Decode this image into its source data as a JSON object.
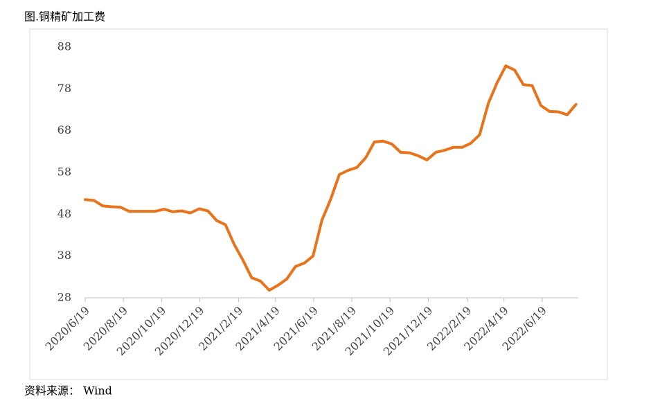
{
  "title": "图.铜精矿加工费",
  "source": "资料来源： Wind",
  "chart_data": {
    "type": "line",
    "color": "#e8731a",
    "x": [
      "2020/6/19",
      "2020/7/3",
      "2020/7/17",
      "2020/7/31",
      "2020/8/14",
      "2020/8/28",
      "2020/9/11",
      "2020/9/25",
      "2020/10/9",
      "2020/10/23",
      "2020/11/6",
      "2020/11/20",
      "2020/12/4",
      "2020/12/18",
      "2021/1/1",
      "2021/1/15",
      "2021/1/29",
      "2021/2/12",
      "2021/2/26",
      "2021/3/12",
      "2021/3/26",
      "2021/4/9",
      "2021/4/23",
      "2021/5/7",
      "2021/5/21",
      "2021/6/4",
      "2021/6/18",
      "2021/7/2",
      "2021/7/16",
      "2021/7/30",
      "2021/8/13",
      "2021/8/27",
      "2021/9/10",
      "2021/9/24",
      "2021/10/8",
      "2021/10/22",
      "2021/11/5",
      "2021/11/19",
      "2021/12/3",
      "2021/12/17",
      "2021/12/31",
      "2022/1/14",
      "2022/1/28",
      "2022/2/11",
      "2022/2/25",
      "2022/3/11",
      "2022/3/25",
      "2022/4/8",
      "2022/4/22",
      "2022/5/6",
      "2022/5/20",
      "2022/6/3",
      "2022/6/17",
      "2022/7/1",
      "2022/7/15",
      "2022/7/29",
      "2022/8/12"
    ],
    "values": [
      51.5,
      51.3,
      50.0,
      49.8,
      49.7,
      48.7,
      48.7,
      48.7,
      48.7,
      49.2,
      48.6,
      48.8,
      48.3,
      49.3,
      48.8,
      46.5,
      45.5,
      40.8,
      37.0,
      32.8,
      32.0,
      29.8,
      31.0,
      32.5,
      35.5,
      36.3,
      38.0,
      46.5,
      51.5,
      57.5,
      58.5,
      59.2,
      61.5,
      65.3,
      65.5,
      64.8,
      62.8,
      62.7,
      62.0,
      61.0,
      62.8,
      63.3,
      64.0,
      64.0,
      65.0,
      67.0,
      74.5,
      79.5,
      83.5,
      82.5,
      79.0,
      78.8,
      74.0,
      72.6,
      72.5,
      71.8,
      74.3
    ],
    "xlim": [
      "2020/6/19",
      "2022/8/19"
    ],
    "xticks": [
      "2020/6/19",
      "2020/8/19",
      "2020/10/19",
      "2020/12/19",
      "2021/2/19",
      "2021/4/19",
      "2021/6/19",
      "2021/8/19",
      "2021/10/19",
      "2021/12/19",
      "2022/2/19",
      "2022/4/19",
      "2022/6/19"
    ],
    "ylim": [
      28,
      88
    ],
    "yticks": [
      28,
      38,
      48,
      58,
      68,
      78,
      88
    ]
  }
}
